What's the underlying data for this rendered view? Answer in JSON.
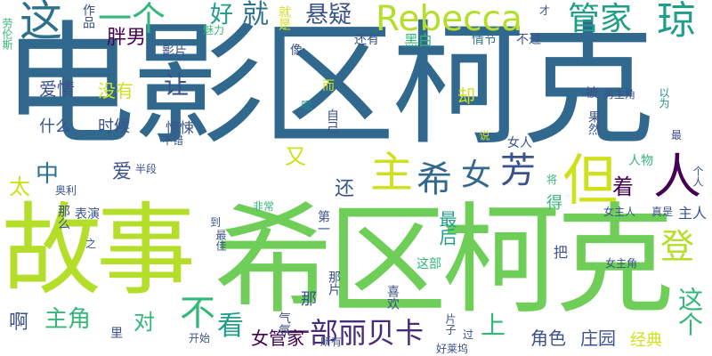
{
  "cloud": {
    "palette": {
      "dark_purple": "#440154",
      "purple": "#472c7a",
      "blue": "#3b528b",
      "steel_blue": "#31688e",
      "teal_blue": "#2c728e",
      "teal": "#21918c",
      "green_teal": "#1f9e89",
      "green": "#35b779",
      "light_green": "#6ece58",
      "yellow_green": "#b5de2b",
      "lime": "#cfe11c"
    },
    "words": [
      {
        "text": "电影区柯克",
        "color": "#31688e"
      },
      {
        "text": "希区柯克",
        "color": "#6ece58"
      },
      {
        "text": "故事",
        "color": "#b5de2b"
      },
      {
        "text": "Rebecca",
        "color": "#b5de2b"
      },
      {
        "text": "这",
        "color": "#2c728e"
      },
      {
        "text": "一个",
        "color": "#35b779"
      },
      {
        "text": "好",
        "color": "#1f9e89"
      },
      {
        "text": "就",
        "color": "#2c728e"
      },
      {
        "text": "悬疑",
        "color": "#3b528b"
      },
      {
        "text": "管家",
        "color": "#1f9e89"
      },
      {
        "text": "琼",
        "color": "#1f9e89"
      },
      {
        "text": "胖男",
        "color": "#440154"
      },
      {
        "text": "主",
        "color": "#cfe11c"
      },
      {
        "text": "希",
        "color": "#31688e"
      },
      {
        "text": "女",
        "color": "#31688e"
      },
      {
        "text": "芳",
        "color": "#3b528b"
      },
      {
        "text": "但",
        "color": "#cfe11c"
      },
      {
        "text": "人",
        "color": "#440154"
      },
      {
        "text": "登",
        "color": "#b5de2b"
      },
      {
        "text": "中",
        "color": "#2c728e"
      },
      {
        "text": "太",
        "color": "#cfe11c"
      },
      {
        "text": "让",
        "color": "#3b528b"
      },
      {
        "text": "爱情",
        "color": "#3b528b"
      },
      {
        "text": "没有",
        "color": "#cfe11c"
      },
      {
        "text": "什么",
        "color": "#3b528b"
      },
      {
        "text": "时候",
        "color": "#3b528b"
      },
      {
        "text": "惊悚",
        "color": "#3b528b"
      },
      {
        "text": "爱",
        "color": "#3b528b"
      },
      {
        "text": "着",
        "color": "#440154"
      },
      {
        "text": "还",
        "color": "#3b528b"
      },
      {
        "text": "又",
        "color": "#cfe11c"
      },
      {
        "text": "最后",
        "color": "#1f9e89"
      },
      {
        "text": "主角",
        "color": "#35b779"
      },
      {
        "text": "对",
        "color": "#35b779"
      },
      {
        "text": "不",
        "color": "#35b779"
      },
      {
        "text": "啊",
        "color": "#3b528b"
      },
      {
        "text": "看",
        "color": "#1f9e89"
      },
      {
        "text": "一部丽贝卡",
        "color": "#472c7a"
      },
      {
        "text": "女管家",
        "color": "#440154"
      },
      {
        "text": "上",
        "color": "#35b779"
      },
      {
        "text": "这个",
        "color": "#35b779"
      },
      {
        "text": "角色",
        "color": "#3b528b"
      },
      {
        "text": "庄园",
        "color": "#3b528b"
      },
      {
        "text": "经典",
        "color": "#cfe11c"
      },
      {
        "text": "作品",
        "color": "#3b528b"
      },
      {
        "text": "就是",
        "color": "#cfe11c"
      },
      {
        "text": "魅力",
        "color": "#35b779"
      },
      {
        "text": "影片",
        "color": "#3b528b"
      },
      {
        "text": "还有",
        "color": "#3b528b"
      },
      {
        "text": "黑白",
        "color": "#35b779"
      },
      {
        "text": "情节",
        "color": "#2c728e"
      },
      {
        "text": "不过",
        "color": "#3b528b"
      },
      {
        "text": "才",
        "color": "#3b528b"
      },
      {
        "text": "像",
        "color": "#3b528b"
      },
      {
        "text": "而",
        "color": "#cfe11c"
      },
      {
        "text": "却",
        "color": "#cfe11c"
      },
      {
        "text": "自己",
        "color": "#3b528b"
      },
      {
        "text": "呢",
        "color": "#21918c"
      },
      {
        "text": "被",
        "color": "#3b528b"
      },
      {
        "text": "男主角",
        "color": "#3b528b"
      },
      {
        "text": "以为",
        "color": "#21918c"
      },
      {
        "text": "果然",
        "color": "#3b528b"
      },
      {
        "text": "说",
        "color": "#cfe11c"
      },
      {
        "text": "女人",
        "color": "#3b528b"
      },
      {
        "text": "最",
        "color": "#3b528b"
      },
      {
        "text": "人物",
        "color": "#35b779"
      },
      {
        "text": "个人",
        "color": "#3b528b"
      },
      {
        "text": "将",
        "color": "#35b779"
      },
      {
        "text": "主人",
        "color": "#3b528b"
      },
      {
        "text": "女主人",
        "color": "#3b528b"
      },
      {
        "text": "真是",
        "color": "#3b528b"
      },
      {
        "text": "得",
        "color": "#35b779"
      },
      {
        "text": "半段",
        "color": "#3b528b"
      },
      {
        "text": "奥利",
        "color": "#3b528b"
      },
      {
        "text": "不错",
        "color": "#3b528b"
      },
      {
        "text": "表演",
        "color": "#3b528b"
      },
      {
        "text": "那么",
        "color": "#3b528b"
      },
      {
        "text": "非常",
        "color": "#35b779"
      },
      {
        "text": "第一",
        "color": "#3b528b"
      },
      {
        "text": "到",
        "color": "#3b528b"
      },
      {
        "text": "最佳",
        "color": "#3b528b"
      },
      {
        "text": "之",
        "color": "#3b528b"
      },
      {
        "text": "那",
        "color": "#3b528b"
      },
      {
        "text": "那片",
        "color": "#3b528b"
      },
      {
        "text": "这部",
        "color": "#35b779"
      },
      {
        "text": "把",
        "color": "#3b528b"
      },
      {
        "text": "女主角",
        "color": "#3b528b"
      },
      {
        "text": "喜欢",
        "color": "#3b528b"
      },
      {
        "text": "片子",
        "color": "#3b528b"
      },
      {
        "text": "气氛",
        "color": "#3b528b"
      },
      {
        "text": "里",
        "color": "#3b528b"
      },
      {
        "text": "开始",
        "color": "#3b528b"
      },
      {
        "text": "所有",
        "color": "#3b528b"
      },
      {
        "text": "过",
        "color": "#3b528b"
      },
      {
        "text": "好莱坞",
        "color": "#3b528b"
      },
      {
        "text": "劳伦斯",
        "color": "#35b779"
      }
    ]
  }
}
